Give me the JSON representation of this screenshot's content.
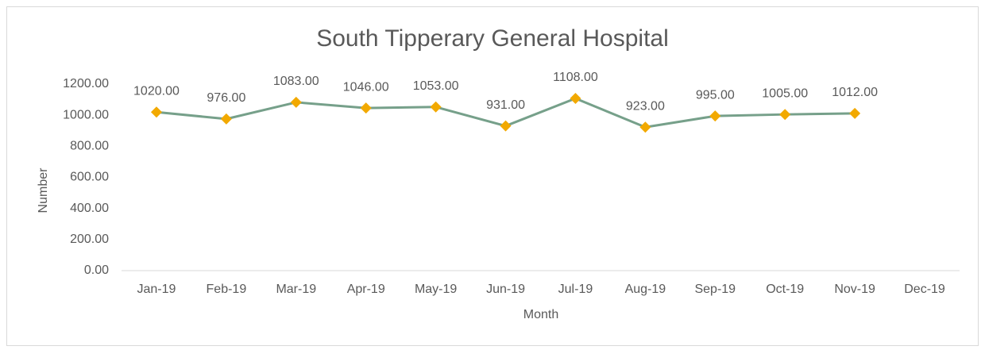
{
  "chart_data": {
    "type": "line",
    "title": "South Tipperary General Hospital",
    "x_label": "Month",
    "y_label": "Number",
    "categories": [
      "Jan-19",
      "Feb-19",
      "Mar-19",
      "Apr-19",
      "May-19",
      "Jun-19",
      "Jul-19",
      "Aug-19",
      "Sep-19",
      "Oct-19",
      "Nov-19",
      "Dec-19"
    ],
    "series": [
      {
        "line_color": "#76a08a",
        "marker_color": "#f2a900",
        "values": [
          1020,
          976,
          1083,
          1046,
          1053,
          931,
          1108,
          923,
          995,
          1005,
          1012,
          null
        ],
        "value_labels": [
          "1020.00",
          "976.00",
          "1083.00",
          "1046.00",
          "1053.00",
          "931.00",
          "1108.00",
          "923.00",
          "995.00",
          "1005.00",
          "1012.00",
          null
        ]
      }
    ],
    "ylim": [
      0,
      1200
    ],
    "yticks": [
      {
        "value": 0,
        "label": "0.00"
      },
      {
        "value": 200,
        "label": "200.00"
      },
      {
        "value": 400,
        "label": "400.00"
      },
      {
        "value": 600,
        "label": "600.00"
      },
      {
        "value": 800,
        "label": "800.00"
      },
      {
        "value": 1000,
        "label": "1000.00"
      },
      {
        "value": 1200,
        "label": "1200.00"
      }
    ],
    "grid": false
  }
}
